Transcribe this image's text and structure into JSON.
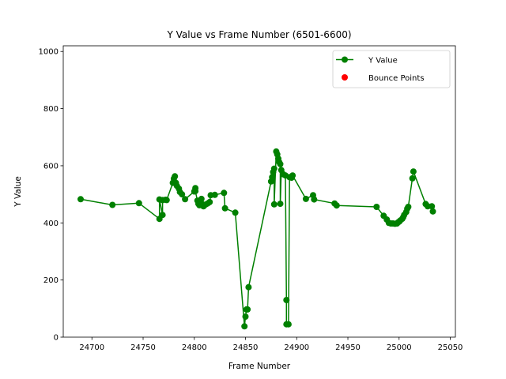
{
  "chart_data": {
    "type": "line",
    "title": "Y Value vs Frame Number (6501-6600)",
    "xlabel": "Frame Number",
    "ylabel": "Y Value",
    "xlim": [
      24672,
      25055
    ],
    "ylim": [
      0,
      1020
    ],
    "xticks": [
      24700,
      24750,
      24800,
      24850,
      24900,
      24950,
      25000,
      25050
    ],
    "yticks": [
      0,
      200,
      400,
      600,
      800,
      1000
    ],
    "grid": false,
    "legend_position": "top-right",
    "series": [
      {
        "name": "Y Value",
        "kind": "line-marker",
        "color": "#008000",
        "points": [
          [
            24689,
            483
          ],
          [
            24720,
            463
          ],
          [
            24746,
            469
          ],
          [
            24766,
            414
          ],
          [
            24766,
            482
          ],
          [
            24769,
            428
          ],
          [
            24769,
            480
          ],
          [
            24772,
            481
          ],
          [
            24773,
            480
          ],
          [
            24779,
            540
          ],
          [
            24780,
            555
          ],
          [
            24781,
            563
          ],
          [
            24782,
            540
          ],
          [
            24783,
            530
          ],
          [
            24785,
            520
          ],
          [
            24786,
            508
          ],
          [
            24788,
            500
          ],
          [
            24791,
            483
          ],
          [
            24800,
            510
          ],
          [
            24801,
            522
          ],
          [
            24801,
            511
          ],
          [
            24803,
            478
          ],
          [
            24804,
            467
          ],
          [
            24805,
            462
          ],
          [
            24806,
            475
          ],
          [
            24807,
            484
          ],
          [
            24808,
            465
          ],
          [
            24809,
            458
          ],
          [
            24811,
            464
          ],
          [
            24813,
            468
          ],
          [
            24815,
            473
          ],
          [
            24816,
            497
          ],
          [
            24820,
            498
          ],
          [
            24829,
            505
          ],
          [
            24830,
            451
          ],
          [
            24840,
            436
          ],
          [
            24849,
            38
          ],
          [
            24850,
            72
          ],
          [
            24851,
            97
          ],
          [
            24852,
            97
          ],
          [
            24853,
            175
          ],
          [
            24875,
            545
          ],
          [
            24876,
            560
          ],
          [
            24877,
            578
          ],
          [
            24878,
            590
          ],
          [
            24878,
            465
          ],
          [
            24880,
            650
          ],
          [
            24881,
            640
          ],
          [
            24882,
            625
          ],
          [
            24883,
            612
          ],
          [
            24884,
            606
          ],
          [
            24884,
            467
          ],
          [
            24885,
            585
          ],
          [
            24887,
            570
          ],
          [
            24889,
            566
          ],
          [
            24890,
            130
          ],
          [
            24890,
            45
          ],
          [
            24892,
            45
          ],
          [
            24893,
            560
          ],
          [
            24895,
            558
          ],
          [
            24896,
            566
          ],
          [
            24909,
            484
          ],
          [
            24916,
            497
          ],
          [
            24917,
            482
          ],
          [
            24937,
            468
          ],
          [
            24939,
            461
          ],
          [
            24978,
            456
          ],
          [
            24985,
            425
          ],
          [
            24988,
            412
          ],
          [
            24990,
            400
          ],
          [
            24992,
            398
          ],
          [
            24994,
            398
          ],
          [
            24996,
            397
          ],
          [
            24998,
            398
          ],
          [
            24999,
            402
          ],
          [
            25000,
            404
          ],
          [
            25001,
            408
          ],
          [
            25003,
            414
          ],
          [
            25004,
            420
          ],
          [
            25005,
            428
          ],
          [
            25007,
            438
          ],
          [
            25008,
            450
          ],
          [
            25009,
            456
          ],
          [
            25013,
            556
          ],
          [
            25014,
            580
          ],
          [
            25026,
            466
          ],
          [
            25028,
            458
          ],
          [
            25032,
            458
          ],
          [
            25033,
            440
          ]
        ]
      },
      {
        "name": "Bounce Points",
        "kind": "scatter",
        "color": "#ff0000",
        "points": []
      }
    ]
  }
}
